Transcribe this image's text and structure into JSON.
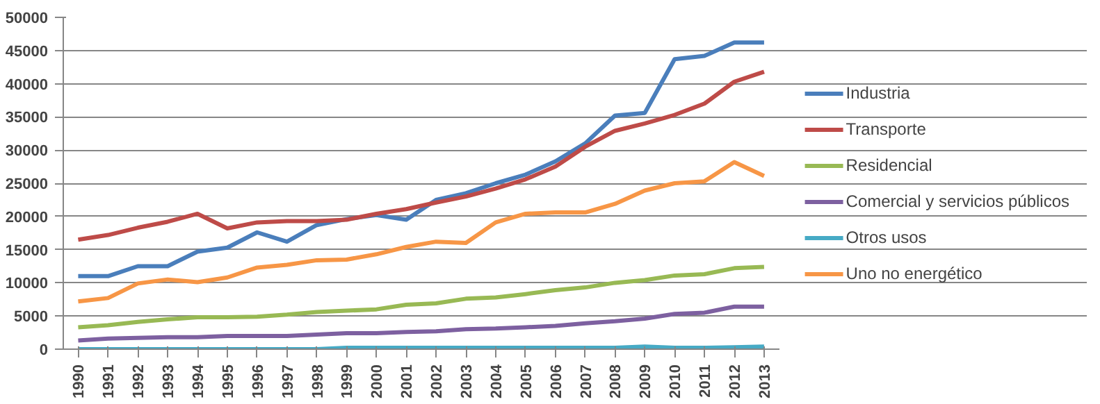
{
  "chart_data": {
    "type": "line",
    "categories": [
      "1990",
      "1991",
      "1992",
      "1993",
      "1994",
      "1995",
      "1996",
      "1997",
      "1998",
      "1999",
      "2000",
      "2001",
      "2002",
      "2003",
      "2004",
      "2005",
      "2006",
      "2007",
      "2008",
      "2009",
      "2010",
      "2011",
      "2012",
      "2013"
    ],
    "series": [
      {
        "name": "Industria",
        "color": "#4a7ebb",
        "values": [
          11000,
          11000,
          12500,
          12500,
          14700,
          15300,
          17600,
          16200,
          18700,
          19600,
          20200,
          19500,
          22500,
          23500,
          25000,
          26300,
          28300,
          31000,
          35200,
          35600,
          43700,
          44200,
          46200,
          46200
        ]
      },
      {
        "name": "Transporte",
        "color": "#be4b48",
        "values": [
          16500,
          17200,
          18300,
          19200,
          20400,
          18200,
          19100,
          19300,
          19300,
          19500,
          20400,
          21100,
          22100,
          23000,
          24200,
          25600,
          27500,
          30500,
          32900,
          34000,
          35300,
          37000,
          40300,
          41800
        ]
      },
      {
        "name": "Residencial",
        "color": "#98b954",
        "values": [
          3300,
          3600,
          4100,
          4500,
          4800,
          4800,
          4900,
          5200,
          5600,
          5800,
          6000,
          6700,
          6900,
          7600,
          7800,
          8300,
          8900,
          9300,
          10000,
          10400,
          11100,
          11300,
          12200,
          12400
        ]
      },
      {
        "name": "Comercial y servicios públicos",
        "color": "#7d60a0",
        "values": [
          1300,
          1600,
          1700,
          1800,
          1800,
          2000,
          2000,
          2000,
          2200,
          2400,
          2400,
          2600,
          2700,
          3000,
          3100,
          3300,
          3500,
          3900,
          4200,
          4600,
          5300,
          5500,
          6400,
          6400
        ]
      },
      {
        "name": "Otros usos",
        "color": "#46aac5",
        "values": [
          0,
          0,
          0,
          0,
          0,
          0,
          0,
          0,
          0,
          200,
          200,
          200,
          200,
          200,
          200,
          200,
          200,
          200,
          200,
          400,
          200,
          200,
          300,
          400
        ]
      },
      {
        "name": "Uno no energético",
        "color": "#f79646",
        "values": [
          7200,
          7700,
          9900,
          10500,
          10100,
          10800,
          12300,
          12700,
          13400,
          13500,
          14300,
          15400,
          16200,
          16000,
          19100,
          20400,
          20600,
          20600,
          21900,
          23900,
          25000,
          25300,
          28200,
          26100
        ]
      }
    ],
    "ylim": [
      0,
      50000
    ],
    "yticks": [
      0,
      5000,
      10000,
      15000,
      20000,
      25000,
      30000,
      35000,
      40000,
      45000,
      50000
    ],
    "grid": "y",
    "legend": "right",
    "marker": "none",
    "line_style": "solid"
  }
}
